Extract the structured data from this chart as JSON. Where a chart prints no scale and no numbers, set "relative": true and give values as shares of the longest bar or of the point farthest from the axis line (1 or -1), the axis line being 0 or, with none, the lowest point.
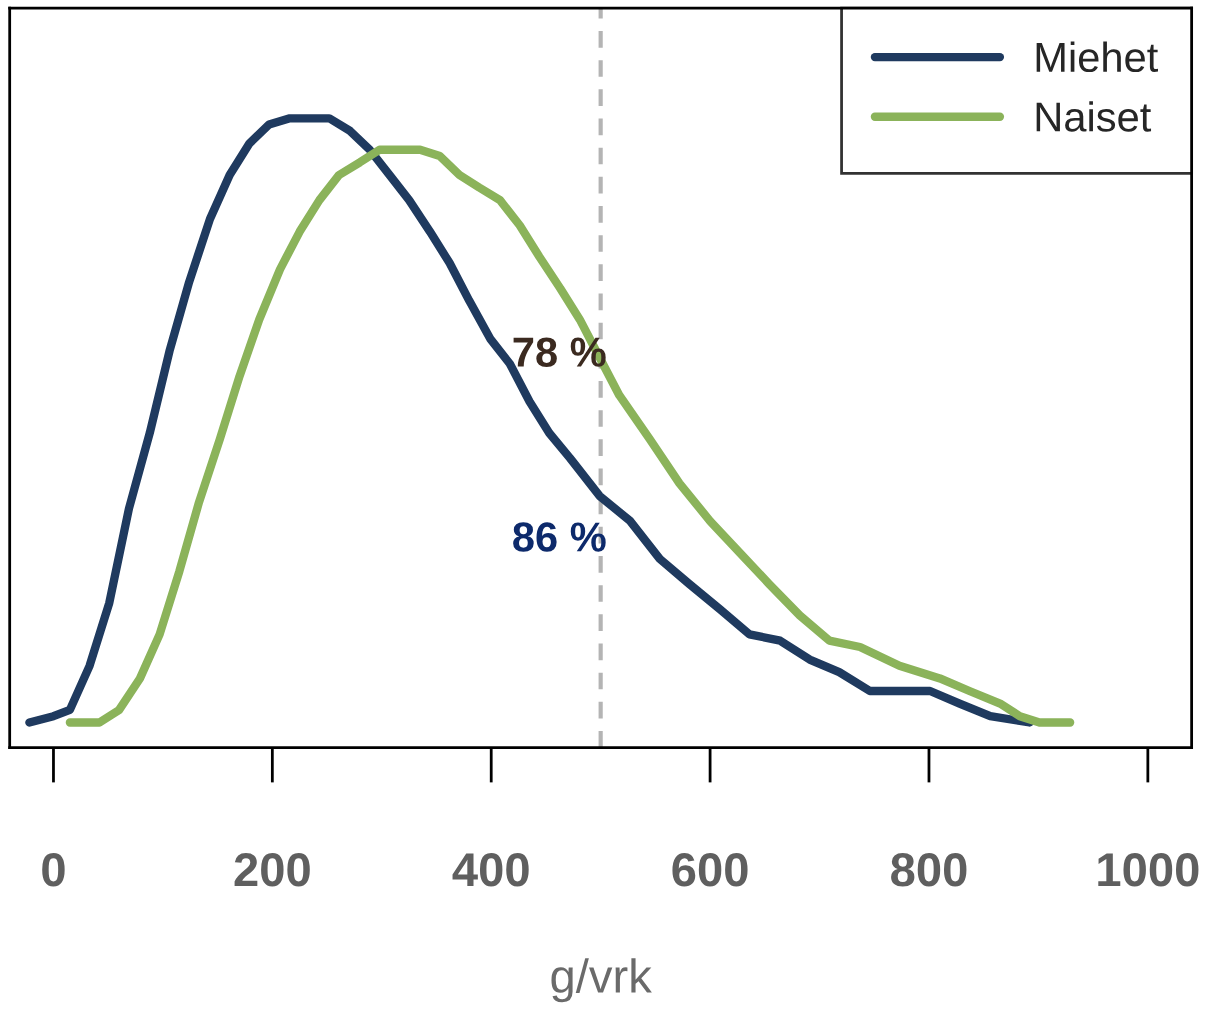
{
  "chart_data": {
    "type": "line",
    "relative": true,
    "xlabel": "g/vrk",
    "xlim": [
      -40,
      1040
    ],
    "xticks": [
      0,
      200,
      400,
      600,
      800,
      1000
    ],
    "tick_labels": "x",
    "grid": false,
    "legend": "top right",
    "series": [
      {
        "name": "Miehet",
        "color": "#1f3a5f",
        "x": [
          -22,
          0,
          15,
          33,
          51,
          69,
          88,
          106,
          124,
          143,
          161,
          179,
          197,
          216,
          234,
          252,
          271,
          289,
          307,
          325,
          344,
          362,
          380,
          399,
          417,
          435,
          453,
          472,
          499,
          527,
          554,
          581,
          609,
          636,
          664,
          691,
          718,
          746,
          773,
          801,
          828,
          856,
          892
        ],
        "values": [
          0.04,
          0.05,
          0.06,
          0.13,
          0.23,
          0.38,
          0.5,
          0.63,
          0.74,
          0.84,
          0.91,
          0.96,
          0.99,
          1.0,
          1.0,
          1.0,
          0.98,
          0.95,
          0.91,
          0.87,
          0.82,
          0.77,
          0.71,
          0.65,
          0.61,
          0.55,
          0.5,
          0.46,
          0.4,
          0.36,
          0.3,
          0.26,
          0.22,
          0.18,
          0.17,
          0.14,
          0.12,
          0.09,
          0.09,
          0.09,
          0.07,
          0.05,
          0.04
        ]
      },
      {
        "name": "Naiset",
        "color": "#8bb35a",
        "x": [
          15,
          42,
          60,
          79,
          97,
          115,
          133,
          152,
          170,
          188,
          207,
          225,
          243,
          261,
          280,
          298,
          316,
          335,
          353,
          371,
          389,
          408,
          426,
          444,
          463,
          481,
          499,
          517,
          545,
          572,
          600,
          627,
          654,
          682,
          709,
          737,
          773,
          810,
          837,
          865,
          883,
          901,
          929
        ],
        "values": [
          0.04,
          0.04,
          0.06,
          0.11,
          0.18,
          0.28,
          0.39,
          0.49,
          0.59,
          0.68,
          0.76,
          0.82,
          0.87,
          0.91,
          0.93,
          0.95,
          0.95,
          0.95,
          0.94,
          0.91,
          0.89,
          0.87,
          0.83,
          0.78,
          0.73,
          0.68,
          0.62,
          0.56,
          0.49,
          0.42,
          0.36,
          0.31,
          0.26,
          0.21,
          0.17,
          0.16,
          0.13,
          0.11,
          0.09,
          0.07,
          0.05,
          0.04,
          0.04
        ]
      }
    ],
    "ref_lines": [
      {
        "axis": "x",
        "value": 500,
        "color": "#b4b4b4",
        "line_style": "dashed"
      }
    ],
    "annotations": [
      "78 %",
      "86 %"
    ]
  }
}
